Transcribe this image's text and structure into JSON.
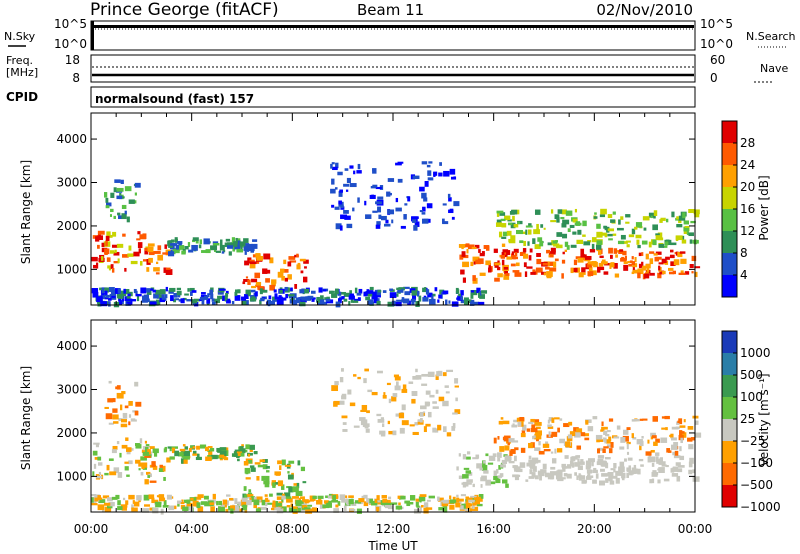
{
  "header": {
    "station": "Prince George (fitACF)",
    "beam": "Beam 11",
    "date": "02/Nov/2010"
  },
  "status_panels": {
    "nsky_label": "N.Sky",
    "nsearch_label": "N.Search",
    "noise_ticks_left": [
      "10^5",
      "10^0"
    ],
    "noise_ticks_right": [
      "10^5",
      "10^0"
    ],
    "freq_label_1": "Freq.",
    "freq_label_2": "[MHz]",
    "freq_ticks": [
      "18",
      "8"
    ],
    "nave_label": "Nave",
    "nave_ticks": [
      "60",
      "0"
    ],
    "cpid_label": "CPID",
    "cpid_value": "normalsound (fast) 157"
  },
  "time_axis": {
    "label": "Time UT",
    "ticks": [
      "00:00",
      "04:00",
      "08:00",
      "12:00",
      "16:00",
      "20:00",
      "00:00"
    ]
  },
  "colors": {
    "power": [
      "#0000ff",
      "#1f4fc8",
      "#2e8f57",
      "#58c043",
      "#c8d400",
      "#ffa000",
      "#ff5a00",
      "#e00000"
    ],
    "velocity": [
      "#1a3ab8",
      "#2a7ea8",
      "#3a9a50",
      "#64c040",
      "#c8c8c0",
      "#ffa000",
      "#ff6a00",
      "#e00000"
    ]
  },
  "chart_data": [
    {
      "type": "heatmap",
      "name": "power",
      "ylabel": "Slant Range [km]",
      "y_ticks": [
        "1000",
        "2000",
        "3000",
        "4000"
      ],
      "ylim": [
        180,
        4600
      ],
      "xlim_hours": [
        0,
        24
      ],
      "colorbar": {
        "label": "Power [dB]",
        "ticks": [
          "4",
          "8",
          "12",
          "16",
          "20",
          "24",
          "28"
        ]
      }
    },
    {
      "type": "heatmap",
      "name": "velocity",
      "ylabel": "Slant Range [km]",
      "y_ticks": [
        "1000",
        "2000",
        "3000",
        "4000"
      ],
      "ylim": [
        180,
        4600
      ],
      "xlim_hours": [
        0,
        24
      ],
      "colorbar": {
        "label": "Velocity [m s⁻¹]",
        "ticks": [
          "1000",
          "500",
          "100",
          "25",
          "−25",
          "−100",
          "−500",
          "−1000"
        ]
      }
    }
  ]
}
